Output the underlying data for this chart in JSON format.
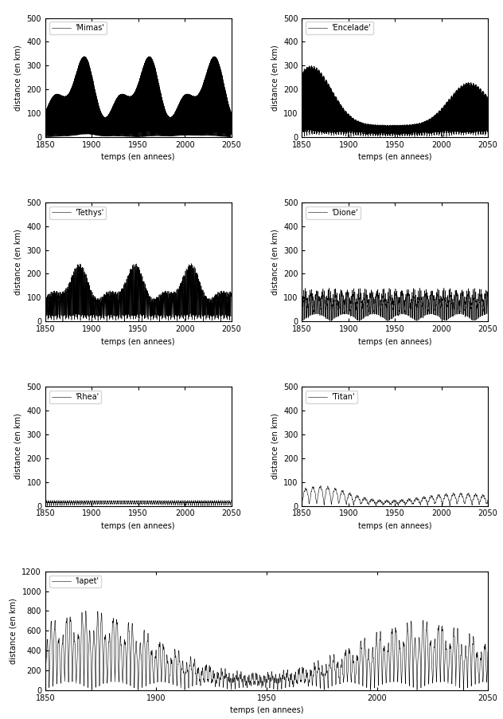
{
  "satellites": [
    "Mimas",
    "Encelade",
    "Tethys",
    "Dione",
    "Rhea",
    "Titan",
    "Iapet"
  ],
  "xlim": [
    1850,
    2050
  ],
  "xticks": [
    1850,
    1900,
    1950,
    2000,
    2050
  ],
  "xlabel": "temps (en annees)",
  "ylabel": "distance (en km)",
  "subplot_ylims": [
    500,
    500,
    500,
    500,
    500,
    500,
    1200
  ],
  "subplot_yticks": [
    [
      0,
      100,
      200,
      300,
      400,
      500
    ],
    [
      0,
      100,
      200,
      300,
      400,
      500
    ],
    [
      0,
      100,
      200,
      300,
      400,
      500
    ],
    [
      0,
      100,
      200,
      300,
      400,
      500
    ],
    [
      0,
      100,
      200,
      300,
      400,
      500
    ],
    [
      0,
      100,
      200,
      300,
      400,
      500
    ],
    [
      0,
      200,
      400,
      600,
      800,
      1000,
      1200
    ]
  ],
  "line_color": "black",
  "linewidth": 0.4,
  "legend_fontsize": 7,
  "tick_fontsize": 7,
  "label_fontsize": 7
}
